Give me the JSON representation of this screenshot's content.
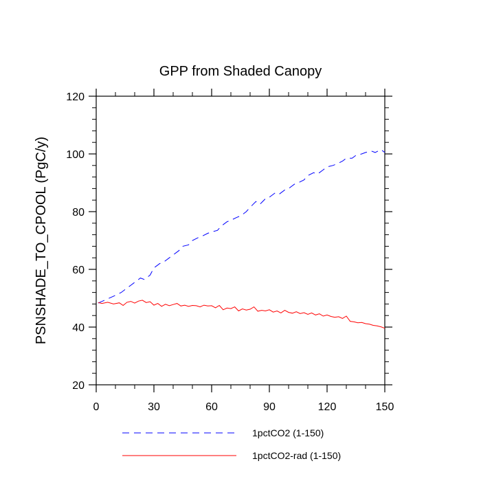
{
  "chart_data": {
    "type": "line",
    "title": "GPP from Shaded Canopy",
    "xlabel": "",
    "ylabel": "PSNSHADE_TO_CPOOL  (PgC/y)",
    "xlim": [
      0,
      150
    ],
    "ylim": [
      20,
      120
    ],
    "xticks": [
      0,
      30,
      60,
      90,
      120,
      150
    ],
    "yticks": [
      20,
      40,
      60,
      80,
      100,
      120
    ],
    "grid": false,
    "legend_position": "bottom",
    "series": [
      {
        "name": "1pctCO2 (1-150)",
        "color": "#0000ff",
        "dash": "dashed",
        "x": [
          1,
          5,
          10,
          13,
          15,
          18,
          20,
          23,
          25,
          28,
          30,
          33,
          35,
          38,
          40,
          43,
          45,
          48,
          50,
          53,
          55,
          58,
          60,
          63,
          65,
          68,
          70,
          73,
          75,
          78,
          80,
          83,
          85,
          88,
          90,
          93,
          95,
          98,
          100,
          103,
          105,
          108,
          110,
          113,
          115,
          118,
          120,
          123,
          125,
          128,
          130,
          133,
          135,
          138,
          140,
          143,
          145,
          148,
          150
        ],
        "values": [
          48.3,
          49.5,
          51.0,
          52.0,
          53.0,
          54.5,
          55.5,
          57.0,
          56.5,
          58.0,
          60.5,
          62.0,
          62.5,
          64.0,
          65.0,
          66.5,
          68.0,
          68.5,
          70.0,
          71.0,
          71.5,
          72.5,
          73.0,
          73.5,
          75.0,
          76.5,
          77.0,
          78.0,
          78.5,
          80.0,
          81.5,
          83.5,
          82.5,
          84.5,
          85.0,
          86.5,
          86.0,
          87.5,
          88.0,
          89.5,
          90.0,
          91.0,
          92.5,
          93.5,
          93.0,
          94.5,
          95.5,
          96.0,
          96.5,
          97.5,
          98.5,
          98.5,
          99.5,
          100.0,
          100.5,
          101.0,
          100.5,
          101.5,
          100.5
        ]
      },
      {
        "name": "1pctCO2-rad (1-150)",
        "color": "#ff0000",
        "dash": "solid",
        "x": [
          1,
          3,
          6,
          9,
          12,
          14,
          16,
          18,
          20,
          22,
          24,
          26,
          28,
          30,
          32,
          34,
          36,
          38,
          40,
          42,
          44,
          46,
          48,
          50,
          52,
          54,
          56,
          58,
          60,
          62,
          64,
          66,
          68,
          70,
          72,
          74,
          76,
          78,
          80,
          82,
          84,
          86,
          88,
          90,
          92,
          94,
          96,
          98,
          100,
          102,
          104,
          106,
          108,
          110,
          112,
          114,
          116,
          118,
          120,
          122,
          124,
          126,
          128,
          130,
          132,
          134,
          136,
          138,
          140,
          142,
          144,
          146,
          148,
          150
        ],
        "values": [
          48.5,
          48.2,
          48.6,
          48.0,
          48.4,
          47.5,
          48.6,
          48.9,
          48.3,
          49.0,
          49.3,
          48.5,
          48.8,
          47.6,
          48.2,
          47.2,
          47.9,
          47.4,
          47.8,
          48.2,
          47.3,
          47.6,
          47.2,
          47.5,
          47.4,
          47.0,
          47.6,
          47.3,
          47.4,
          46.7,
          47.5,
          46.0,
          46.6,
          46.4,
          47.0,
          45.6,
          46.3,
          45.9,
          46.2,
          47.0,
          45.5,
          45.8,
          45.6,
          46.0,
          45.2,
          45.6,
          44.9,
          45.8,
          45.1,
          44.8,
          45.3,
          44.7,
          45.0,
          44.4,
          44.9,
          44.2,
          44.6,
          43.8,
          44.2,
          43.7,
          43.4,
          43.6,
          43.0,
          43.8,
          42.0,
          41.8,
          41.5,
          41.6,
          41.2,
          41.0,
          40.6,
          40.4,
          40.1,
          39.6
        ]
      }
    ]
  }
}
